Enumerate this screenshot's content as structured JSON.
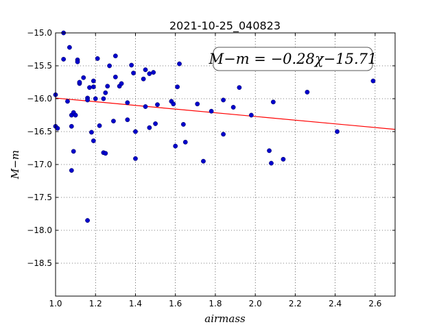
{
  "chart_data": {
    "type": "scatter",
    "title": "2021-10-25_040823",
    "xlabel": "airmass",
    "ylabel": "M−m",
    "xlim": [
      1.0,
      2.7
    ],
    "ylim": [
      -15.0,
      -19.0
    ],
    "y_inverted": true,
    "grid": true,
    "grid_style": "dotted",
    "xticks": [
      "1.0",
      "1.2",
      "1.4",
      "1.6",
      "1.8",
      "2.0",
      "2.2",
      "2.4",
      "2.6"
    ],
    "yticks": [
      "−15.0",
      "−15.5",
      "−16.0",
      "−16.5",
      "−17.0",
      "−17.5",
      "−18.0",
      "−18.5"
    ],
    "annotation": "M−m = −0.28χ−15.71",
    "annotation_placement": "top-right",
    "fit": {
      "slope": -0.28,
      "intercept": -15.71,
      "color": "#ff0000"
    },
    "marker_color": "#0000cc",
    "points": [
      {
        "x": 1.0,
        "y": -15.94
      },
      {
        "x": 1.0,
        "y": -16.42
      },
      {
        "x": 1.01,
        "y": -16.45
      },
      {
        "x": 1.04,
        "y": -15.0
      },
      {
        "x": 1.04,
        "y": -15.4
      },
      {
        "x": 1.06,
        "y": -16.04
      },
      {
        "x": 1.07,
        "y": -15.22
      },
      {
        "x": 1.08,
        "y": -16.25
      },
      {
        "x": 1.08,
        "y": -16.42
      },
      {
        "x": 1.08,
        "y": -17.09
      },
      {
        "x": 1.09,
        "y": -16.8
      },
      {
        "x": 1.09,
        "y": -16.21
      },
      {
        "x": 1.1,
        "y": -16.25
      },
      {
        "x": 1.11,
        "y": -15.41
      },
      {
        "x": 1.11,
        "y": -15.44
      },
      {
        "x": 1.12,
        "y": -15.77
      },
      {
        "x": 1.12,
        "y": -15.75
      },
      {
        "x": 1.14,
        "y": -15.68
      },
      {
        "x": 1.16,
        "y": -15.99
      },
      {
        "x": 1.16,
        "y": -16.02
      },
      {
        "x": 1.16,
        "y": -17.85
      },
      {
        "x": 1.17,
        "y": -15.83
      },
      {
        "x": 1.18,
        "y": -16.51
      },
      {
        "x": 1.19,
        "y": -15.82
      },
      {
        "x": 1.19,
        "y": -15.73
      },
      {
        "x": 1.19,
        "y": -16.64
      },
      {
        "x": 1.2,
        "y": -16.0
      },
      {
        "x": 1.21,
        "y": -15.39
      },
      {
        "x": 1.22,
        "y": -16.41
      },
      {
        "x": 1.24,
        "y": -16.0
      },
      {
        "x": 1.24,
        "y": -16.82
      },
      {
        "x": 1.25,
        "y": -16.83
      },
      {
        "x": 1.25,
        "y": -15.91
      },
      {
        "x": 1.26,
        "y": -15.81
      },
      {
        "x": 1.27,
        "y": -15.5
      },
      {
        "x": 1.29,
        "y": -16.34
      },
      {
        "x": 1.3,
        "y": -15.35
      },
      {
        "x": 1.3,
        "y": -15.67
      },
      {
        "x": 1.32,
        "y": -15.81
      },
      {
        "x": 1.33,
        "y": -15.77
      },
      {
        "x": 1.36,
        "y": -16.06
      },
      {
        "x": 1.36,
        "y": -16.32
      },
      {
        "x": 1.38,
        "y": -15.49
      },
      {
        "x": 1.39,
        "y": -15.61
      },
      {
        "x": 1.4,
        "y": -16.91
      },
      {
        "x": 1.4,
        "y": -16.5
      },
      {
        "x": 1.44,
        "y": -15.7
      },
      {
        "x": 1.45,
        "y": -16.12
      },
      {
        "x": 1.45,
        "y": -15.56
      },
      {
        "x": 1.47,
        "y": -16.44
      },
      {
        "x": 1.47,
        "y": -15.62
      },
      {
        "x": 1.49,
        "y": -15.6
      },
      {
        "x": 1.5,
        "y": -16.38
      },
      {
        "x": 1.51,
        "y": -16.09
      },
      {
        "x": 1.58,
        "y": -16.04
      },
      {
        "x": 1.59,
        "y": -16.08
      },
      {
        "x": 1.6,
        "y": -16.72
      },
      {
        "x": 1.61,
        "y": -15.82
      },
      {
        "x": 1.62,
        "y": -15.47
      },
      {
        "x": 1.64,
        "y": -16.39
      },
      {
        "x": 1.65,
        "y": -16.66
      },
      {
        "x": 1.71,
        "y": -16.08
      },
      {
        "x": 1.74,
        "y": -16.95
      },
      {
        "x": 1.78,
        "y": -16.19
      },
      {
        "x": 1.84,
        "y": -16.54
      },
      {
        "x": 1.84,
        "y": -16.02
      },
      {
        "x": 1.89,
        "y": -16.13
      },
      {
        "x": 1.92,
        "y": -15.83
      },
      {
        "x": 1.98,
        "y": -16.25
      },
      {
        "x": 2.07,
        "y": -16.79
      },
      {
        "x": 2.08,
        "y": -16.98
      },
      {
        "x": 2.09,
        "y": -16.05
      },
      {
        "x": 2.14,
        "y": -16.92
      },
      {
        "x": 2.26,
        "y": -15.9
      },
      {
        "x": 2.41,
        "y": -16.5
      },
      {
        "x": 2.59,
        "y": -15.73
      }
    ]
  }
}
